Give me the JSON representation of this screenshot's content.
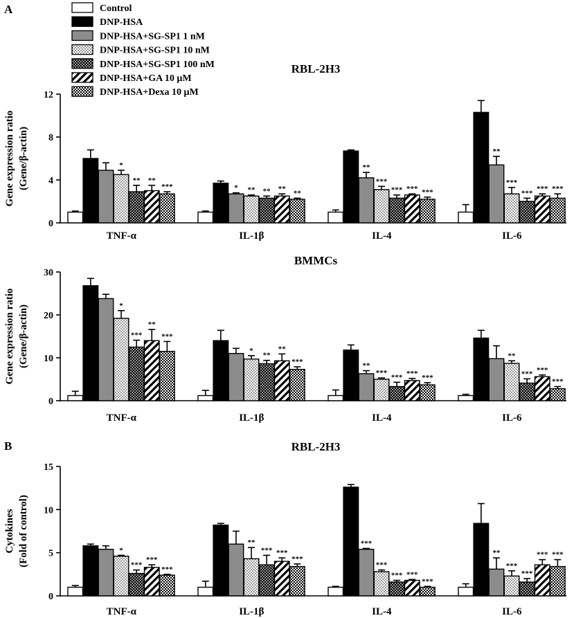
{
  "panel_labels": {
    "a": "A",
    "b": "B"
  },
  "legend": [
    {
      "label": "Control",
      "pattern": "white"
    },
    {
      "label": "DNP-HSA",
      "pattern": "black"
    },
    {
      "label": "DNP-HSA+SG-SP1 1 nM",
      "pattern": "gray"
    },
    {
      "label": "DNP-HSA+SG-SP1 10 nM",
      "pattern": "dots"
    },
    {
      "label": "DNP-HSA+SG-SP1 100 nM",
      "pattern": "dark-dots"
    },
    {
      "label": "DNP-HSA+GA 10 μM",
      "pattern": "stripes"
    },
    {
      "label": "DNP-HSA+Dexa 10 μM",
      "pattern": "checker"
    }
  ],
  "colors": {
    "black_bar": "#000000",
    "gray_bar": "#8c8c8c",
    "white_bar": "#ffffff",
    "stroke": "#000000"
  },
  "chart_data": [
    {
      "type": "bar",
      "title": "RBL-2H3",
      "ylabel_line1": "Gene expression ratio",
      "ylabel_line2": "(Gene/β-actin)",
      "xlabel": "",
      "ylim": [
        0,
        12
      ],
      "yticks": [
        0,
        4,
        8,
        12
      ],
      "categories": [
        "TNF-α",
        "IL-1β",
        "IL-4",
        "IL-6"
      ],
      "series": [
        {
          "name": "Control",
          "values": [
            1.0,
            1.0,
            1.0,
            1.0
          ],
          "errors": [
            0.1,
            0.1,
            0.2,
            0.7
          ],
          "sig": [
            "",
            "",
            "",
            ""
          ]
        },
        {
          "name": "DNP-HSA",
          "values": [
            6.0,
            3.7,
            6.7,
            10.3
          ],
          "errors": [
            0.8,
            0.2,
            0.1,
            1.1
          ],
          "sig": [
            "",
            "",
            "",
            ""
          ]
        },
        {
          "name": "DNP-HSA+SG-SP1 1 nM",
          "values": [
            4.9,
            2.7,
            4.2,
            5.4
          ],
          "errors": [
            0.7,
            0.1,
            0.5,
            0.8
          ],
          "sig": [
            "",
            "*",
            "**",
            "**"
          ]
        },
        {
          "name": "DNP-HSA+SG-SP1 10 nM",
          "values": [
            4.5,
            2.5,
            3.1,
            2.7
          ],
          "errors": [
            0.4,
            0.1,
            0.3,
            0.6
          ],
          "sig": [
            "*",
            "**",
            "***",
            "***"
          ]
        },
        {
          "name": "DNP-HSA+SG-SP1 100 nM",
          "values": [
            2.9,
            2.3,
            2.3,
            2.0
          ],
          "errors": [
            0.6,
            0.2,
            0.3,
            0.3
          ],
          "sig": [
            "**",
            "**",
            "***",
            "***"
          ]
        },
        {
          "name": "DNP-HSA+GA 10 μM",
          "values": [
            3.0,
            2.5,
            2.6,
            2.5
          ],
          "errors": [
            0.5,
            0.2,
            0.1,
            0.2
          ],
          "sig": [
            "**",
            "**",
            "***",
            "***"
          ]
        },
        {
          "name": "DNP-HSA+Dexa 10 μM",
          "values": [
            2.7,
            2.2,
            2.2,
            2.3
          ],
          "errors": [
            0.2,
            0.1,
            0.2,
            0.4
          ],
          "sig": [
            "***",
            "**",
            "***",
            "***"
          ]
        }
      ]
    },
    {
      "type": "bar",
      "title": "BMMCs",
      "ylabel_line1": "Gene expression ratio",
      "ylabel_line2": "(Gene/β-actin)",
      "xlabel": "",
      "ylim": [
        0,
        30
      ],
      "yticks": [
        0,
        10,
        20,
        30
      ],
      "categories": [
        "TNF-α",
        "IL-1β",
        "IL-4",
        "IL-6"
      ],
      "series": [
        {
          "name": "Control",
          "values": [
            1.2,
            1.2,
            1.2,
            1.2
          ],
          "errors": [
            1.0,
            1.2,
            1.3,
            0.3
          ],
          "sig": [
            "",
            "",
            "",
            ""
          ]
        },
        {
          "name": "DNP-HSA",
          "values": [
            26.8,
            14.0,
            11.8,
            14.6
          ],
          "errors": [
            1.7,
            2.4,
            1.2,
            1.8
          ],
          "sig": [
            "",
            "",
            "",
            ""
          ]
        },
        {
          "name": "DNP-HSA+SG-SP1 1 nM",
          "values": [
            23.8,
            11.0,
            6.3,
            9.8
          ],
          "errors": [
            1.0,
            1.2,
            0.7,
            3.0
          ],
          "sig": [
            "",
            "",
            "**",
            ""
          ]
        },
        {
          "name": "DNP-HSA+SG-SP1 10 nM",
          "values": [
            19.2,
            9.7,
            5.0,
            8.7
          ],
          "errors": [
            1.8,
            0.8,
            0.3,
            0.6
          ],
          "sig": [
            "*",
            "*",
            "***",
            "**"
          ]
        },
        {
          "name": "DNP-HSA+SG-SP1 100 nM",
          "values": [
            12.5,
            8.6,
            3.3,
            4.1
          ],
          "errors": [
            1.6,
            0.8,
            1.0,
            1.0
          ],
          "sig": [
            "***",
            "**",
            "***",
            "***"
          ]
        },
        {
          "name": "DNP-HSA+GA 10 μM",
          "values": [
            14.0,
            9.3,
            4.7,
            5.6
          ],
          "errors": [
            2.6,
            1.6,
            0.5,
            0.4
          ],
          "sig": [
            "**",
            "**",
            "***",
            "***"
          ]
        },
        {
          "name": "DNP-HSA+Dexa 10 μM",
          "values": [
            11.5,
            7.3,
            3.7,
            2.8
          ],
          "errors": [
            2.3,
            0.6,
            0.5,
            0.5
          ],
          "sig": [
            "***",
            "***",
            "***",
            "***"
          ]
        }
      ]
    },
    {
      "type": "bar",
      "title": "RBL-2H3",
      "ylabel_line1": "Cytokines",
      "ylabel_line2": "(Fold of control)",
      "xlabel": "",
      "ylim": [
        0,
        15
      ],
      "yticks": [
        0,
        5,
        10,
        15
      ],
      "categories": [
        "TNF-α",
        "IL-1β",
        "IL-4",
        "IL-6"
      ],
      "series": [
        {
          "name": "Control",
          "values": [
            1.0,
            1.0,
            1.0,
            1.0
          ],
          "errors": [
            0.2,
            0.7,
            0.1,
            0.4
          ],
          "sig": [
            "",
            "",
            "",
            ""
          ]
        },
        {
          "name": "DNP-HSA",
          "values": [
            5.8,
            8.2,
            12.6,
            8.4
          ],
          "errors": [
            0.2,
            0.2,
            0.3,
            2.3
          ],
          "sig": [
            "",
            "",
            "",
            ""
          ]
        },
        {
          "name": "DNP-HSA+SG-SP1 1 nM",
          "values": [
            5.4,
            6.0,
            5.4,
            3.1
          ],
          "errors": [
            0.4,
            1.5,
            0.1,
            1.3
          ],
          "sig": [
            "",
            "",
            "***",
            "**"
          ]
        },
        {
          "name": "DNP-HSA+SG-SP1 10 nM",
          "values": [
            4.6,
            4.3,
            2.8,
            2.3
          ],
          "errors": [
            0.1,
            1.3,
            0.2,
            0.6
          ],
          "sig": [
            "*",
            "**",
            "***",
            "***"
          ]
        },
        {
          "name": "DNP-HSA+SG-SP1 100 nM",
          "values": [
            2.6,
            3.6,
            1.6,
            1.6
          ],
          "errors": [
            0.4,
            1.1,
            0.2,
            0.4
          ],
          "sig": [
            "***",
            "***",
            "***",
            "***"
          ]
        },
        {
          "name": "DNP-HSA+GA 10 μM",
          "values": [
            3.3,
            4.0,
            1.8,
            3.6
          ],
          "errors": [
            0.3,
            0.4,
            0.1,
            0.6
          ],
          "sig": [
            "***",
            "***",
            "***",
            "***"
          ]
        },
        {
          "name": "DNP-HSA+Dexa 10 μM",
          "values": [
            2.4,
            3.4,
            1.0,
            3.4
          ],
          "errors": [
            0.1,
            0.3,
            0.1,
            0.8
          ],
          "sig": [
            "***",
            "***",
            "***",
            "***"
          ]
        }
      ]
    }
  ]
}
